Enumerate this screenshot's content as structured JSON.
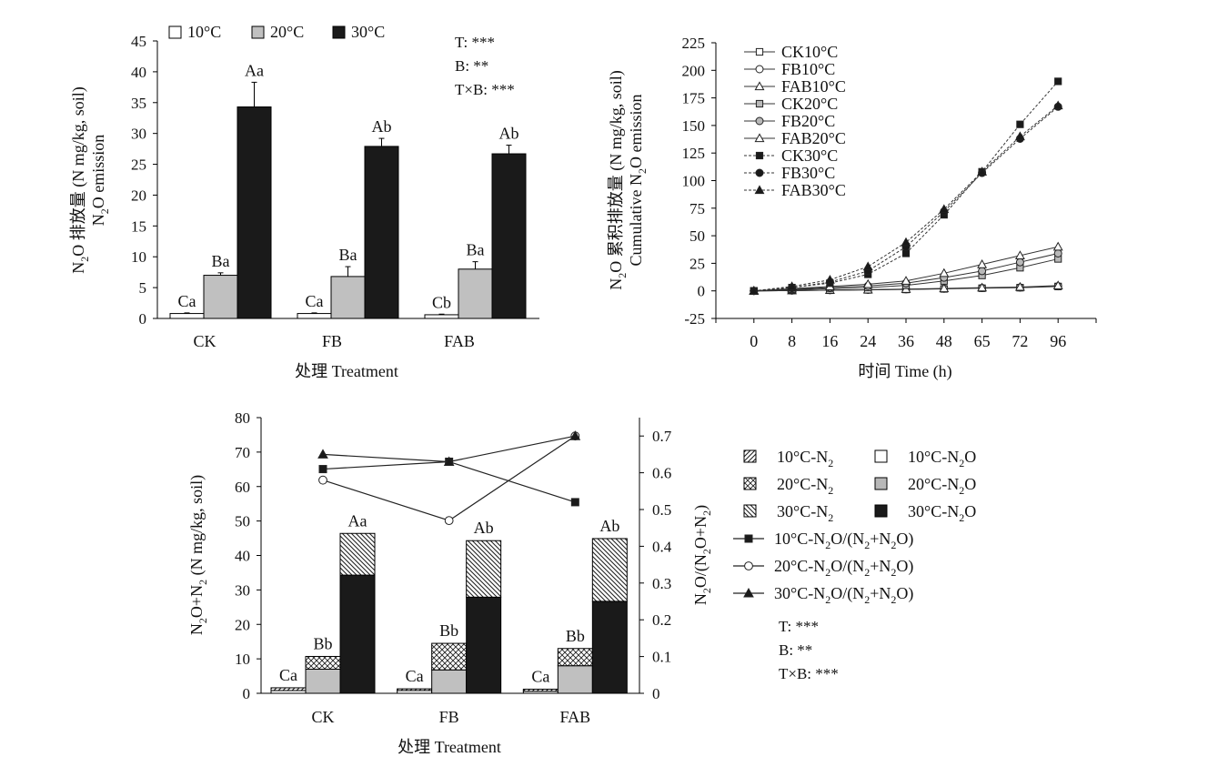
{
  "stats": {
    "t": "T: ***",
    "b": "B: **",
    "tb": "T×B: ***"
  },
  "legend_colors": {
    "10C": "#ffffff",
    "20C": "#c0c0c0",
    "30C": "#1a1a1a"
  },
  "chart_data": [
    {
      "type": "bar",
      "categories": [
        "CK",
        "FB",
        "FAB"
      ],
      "xlabel": "处理 Treatment",
      "ylabel_line1": {
        "main": "N",
        "sub": "2",
        "rest": "O 排放量 (N mg/kg, soil)"
      },
      "ylabel_line2": {
        "main": "N",
        "sub": "2",
        "rest": "O emission"
      },
      "ylim": [
        0,
        45
      ],
      "yticks": [
        0,
        5,
        10,
        15,
        20,
        25,
        30,
        35,
        40,
        45
      ],
      "series": [
        {
          "name": "10°C",
          "values": [
            0.8,
            0.8,
            0.6
          ],
          "errors": [
            0.1,
            0.1,
            0.1
          ],
          "labels": [
            "Ca",
            "Ca",
            "Cb"
          ]
        },
        {
          "name": "20°C",
          "values": [
            7.0,
            6.8,
            8.0
          ],
          "errors": [
            0.4,
            1.6,
            1.2
          ],
          "labels": [
            "Ba",
            "Ba",
            "Ba"
          ]
        },
        {
          "name": "30°C",
          "values": [
            34.3,
            27.9,
            26.7
          ],
          "errors": [
            4.0,
            1.3,
            1.4
          ],
          "labels": [
            "Aa",
            "Ab",
            "Ab"
          ]
        }
      ]
    },
    {
      "type": "line",
      "x": [
        "0",
        "8",
        "16",
        "24",
        "36",
        "48",
        "65",
        "72",
        "96"
      ],
      "xlabel": "时间 Time (h)",
      "ylabel_line1": {
        "main": "N",
        "sub": "2",
        "rest": "O 累积排放量 (N mg/kg, soil)"
      },
      "ylabel_line2": {
        "main": "Cumulative N",
        "sub": "2",
        "rest": "O emission"
      },
      "ylim": [
        -25,
        225
      ],
      "yticks": [
        -25,
        0,
        25,
        50,
        75,
        100,
        125,
        150,
        175,
        200,
        225
      ],
      "series": [
        {
          "name": "CK10°C",
          "marker": "square",
          "fill": "white",
          "dash": false,
          "values": [
            0,
            0.3,
            0.6,
            0.9,
            1.3,
            1.8,
            2.4,
            2.9,
            4.0
          ]
        },
        {
          "name": "FB10°C",
          "marker": "circle",
          "fill": "white",
          "dash": false,
          "values": [
            0,
            0.3,
            0.7,
            1.0,
            1.5,
            2.0,
            2.6,
            3.1,
            4.2
          ]
        },
        {
          "name": "FAB10°C",
          "marker": "triangle",
          "fill": "white",
          "dash": false,
          "values": [
            0,
            0.3,
            0.7,
            1.1,
            1.6,
            2.2,
            2.9,
            3.5,
            4.8
          ]
        },
        {
          "name": "CK20°C",
          "marker": "square",
          "fill": "gray",
          "dash": false,
          "values": [
            0,
            1.0,
            2.0,
            3.0,
            5.0,
            9.0,
            14.0,
            21.0,
            29.0
          ]
        },
        {
          "name": "FB20°C",
          "marker": "circle",
          "fill": "gray",
          "dash": false,
          "values": [
            0,
            1.5,
            3.0,
            4.5,
            7.0,
            12.0,
            18.0,
            26.0,
            34.0
          ]
        },
        {
          "name": "FAB20°C",
          "marker": "triangle",
          "fill": "white",
          "dash": false,
          "values": [
            0,
            2.0,
            4.0,
            6.0,
            9.0,
            16.0,
            24.0,
            32.0,
            40.0
          ]
        },
        {
          "name": "CK30°C",
          "marker": "square",
          "fill": "dark",
          "dash": true,
          "values": [
            0,
            3.0,
            7.0,
            15.0,
            34.0,
            69.0,
            108.0,
            151.0,
            190.0
          ]
        },
        {
          "name": "FB30°C",
          "marker": "circle",
          "fill": "dark",
          "dash": true,
          "values": [
            0,
            3.0,
            8.0,
            18.0,
            40.0,
            72.0,
            107.0,
            138.0,
            167.0
          ]
        },
        {
          "name": "FAB30°C",
          "marker": "triangle",
          "fill": "dark",
          "dash": true,
          "values": [
            0,
            4.0,
            10.0,
            22.0,
            44.0,
            74.0,
            108.0,
            140.0,
            168.0
          ]
        }
      ]
    },
    {
      "type": "bar",
      "categories": [
        "CK",
        "FB",
        "FAB"
      ],
      "xlabel": "处理 Treatment",
      "ylabel_left": {
        "a": "N",
        "s1": "2",
        "b": "O+N",
        "s2": "2",
        "c": " (N mg/kg, soil)"
      },
      "ylabel_right": {
        "a": "N",
        "s1": "2",
        "b": "O/(N",
        "s2": "2",
        "c": "O+N",
        "s3": "2",
        "d": ")"
      },
      "ylim": [
        0,
        80
      ],
      "yticks": [
        0,
        10,
        20,
        30,
        40,
        50,
        60,
        70,
        80
      ],
      "y2lim": [
        0,
        0.75
      ],
      "y2ticks": [
        "0",
        "0.1",
        "0.2",
        "0.3",
        "0.4",
        "0.5",
        "0.6",
        "0.7"
      ],
      "groups": [
        {
          "name": "10°C",
          "n2o": [
            0.8,
            0.8,
            0.6
          ],
          "n2": [
            0.8,
            0.5,
            0.6
          ],
          "labels": [
            "Ca",
            "Ca",
            "Ca"
          ]
        },
        {
          "name": "20°C",
          "n2o": [
            7.0,
            6.8,
            8.0
          ],
          "n2": [
            3.7,
            7.7,
            5.0
          ],
          "labels": [
            "Bb",
            "Bb",
            "Bb"
          ]
        },
        {
          "name": "30°C",
          "n2o": [
            34.3,
            27.9,
            26.7
          ],
          "n2": [
            12.1,
            16.4,
            18.2
          ],
          "labels": [
            "Aa",
            "Ab",
            "Ab"
          ]
        }
      ],
      "ratio_series": [
        {
          "name": "10°C-N2O/(N2+N2O)",
          "marker": "square",
          "values": [
            0.61,
            0.63,
            0.52
          ]
        },
        {
          "name": "20°C-N2O/(N2+N2O)",
          "marker": "circle",
          "values": [
            0.58,
            0.47,
            0.7
          ]
        },
        {
          "name": "30°C-N2O/(N2+N2O)",
          "marker": "triangle",
          "values": [
            0.65,
            0.63,
            0.7
          ]
        }
      ],
      "legend": [
        {
          "kind": "hatch",
          "pattern": "diag",
          "label": {
            "a": "10°C-N",
            "s": "2"
          }
        },
        {
          "kind": "solid",
          "fill": "white",
          "label": {
            "a": "10°C-N",
            "s": "2",
            "b": "O"
          }
        },
        {
          "kind": "hatch",
          "pattern": "cross",
          "label": {
            "a": "20°C-N",
            "s": "2"
          }
        },
        {
          "kind": "solid",
          "fill": "gray",
          "label": {
            "a": "20°C-N",
            "s": "2",
            "b": "O"
          }
        },
        {
          "kind": "hatch",
          "pattern": "back",
          "label": {
            "a": "30°C-N",
            "s": "2"
          }
        },
        {
          "kind": "solid",
          "fill": "dark",
          "label": {
            "a": "30°C-N",
            "s": "2",
            "b": "O"
          }
        }
      ],
      "line_legend": [
        {
          "a": "10°C-N",
          "s1": "2",
          "b": "O/(N",
          "s2": "2",
          "c": "+N",
          "s3": "2",
          "d": "O)"
        },
        {
          "a": "20°C-N",
          "s1": "2",
          "b": "O/(N",
          "s2": "2",
          "c": "+N",
          "s3": "2",
          "d": "O)"
        },
        {
          "a": "30°C-N",
          "s1": "2",
          "b": "O/(N",
          "s2": "2",
          "c": "+N",
          "s3": "2",
          "d": "O)"
        }
      ]
    }
  ]
}
